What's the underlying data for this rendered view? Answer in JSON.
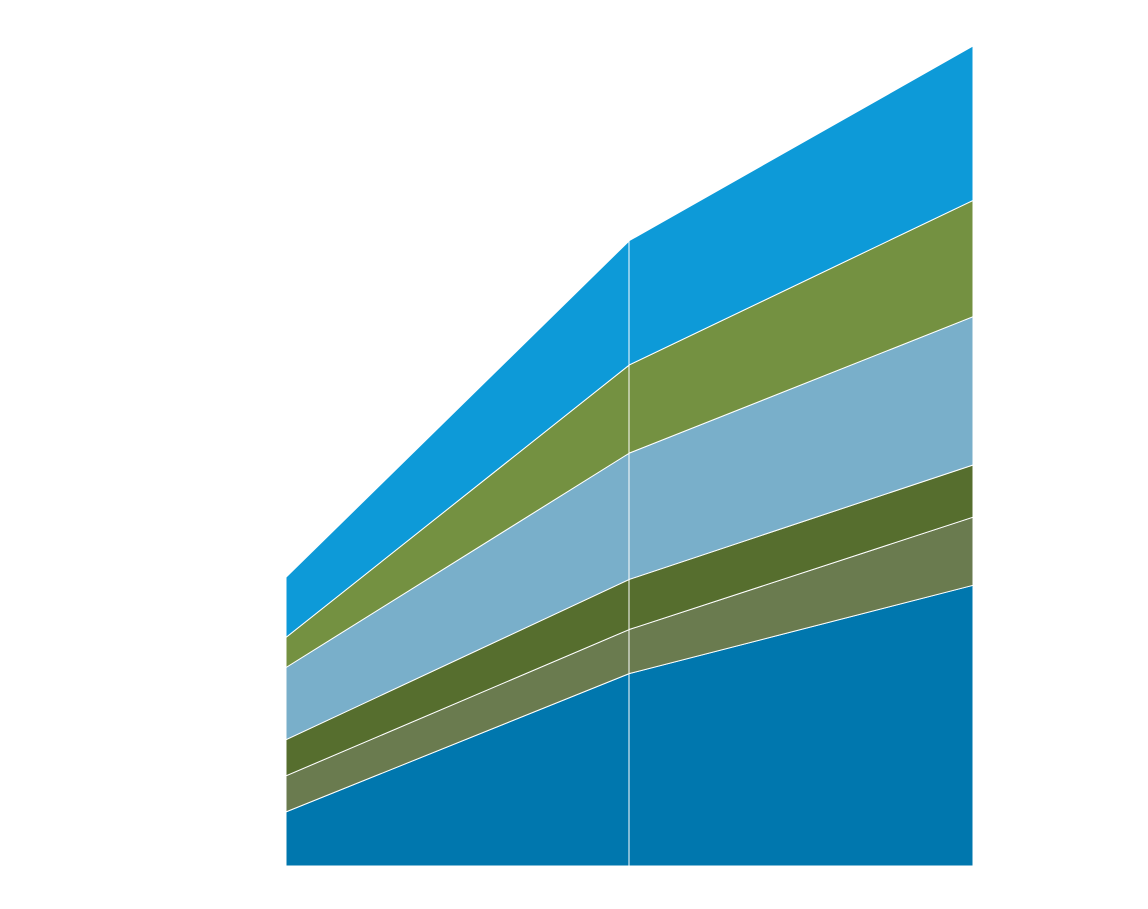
{
  "chart_data": {
    "type": "area",
    "stacked": true,
    "title": "",
    "xlabel": "",
    "ylabel": "",
    "x": [
      "",
      "",
      ""
    ],
    "ylim": [
      0,
      4.1
    ],
    "grid": false,
    "legend": "none",
    "series": [
      {
        "color": "#0077ae",
        "values": [
          0.27,
          0.96,
          1.4
        ]
      },
      {
        "color": "#6a7b4f",
        "values": [
          0.18,
          0.22,
          0.34
        ]
      },
      {
        "color": "#566e2e",
        "values": [
          0.18,
          0.25,
          0.26
        ]
      },
      {
        "color": "#79afca",
        "values": [
          0.36,
          0.63,
          0.74
        ]
      },
      {
        "color": "#749141",
        "values": [
          0.15,
          0.44,
          0.58
        ]
      },
      {
        "color": "#0d9ad8",
        "values": [
          0.3,
          0.62,
          0.77
        ]
      }
    ]
  }
}
